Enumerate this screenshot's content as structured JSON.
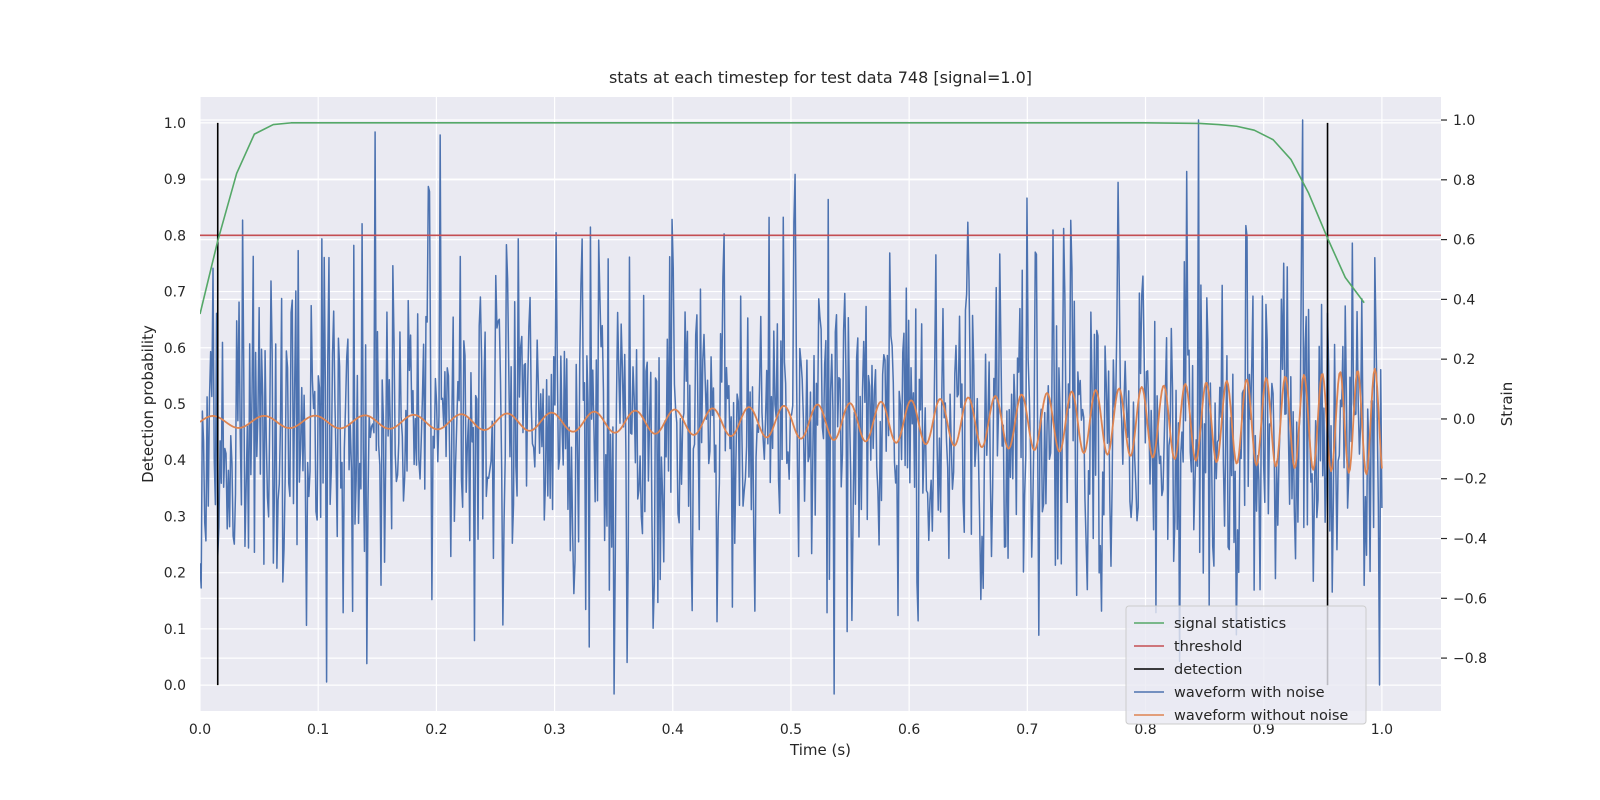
{
  "chart_data": {
    "type": "line",
    "title": "stats at each timestep for test data 748 [signal=1.0]",
    "xlabel": "Time (s)",
    "ylabel": "Detection probability",
    "y2label": "Strain",
    "xlim": [
      0.0,
      1.05
    ],
    "ylim": [
      -0.046,
      1.046
    ],
    "y2lim": [
      -0.977,
      1.077
    ],
    "x_ticks": [
      0.0,
      0.1,
      0.2,
      0.3,
      0.4,
      0.5,
      0.6,
      0.7,
      0.8,
      0.9,
      1.0
    ],
    "x_tick_labels": [
      "0.0",
      "0.1",
      "0.2",
      "0.3",
      "0.4",
      "0.5",
      "0.6",
      "0.7",
      "0.8",
      "0.9",
      "1.0"
    ],
    "y_ticks": [
      0.0,
      0.1,
      0.2,
      0.3,
      0.4,
      0.5,
      0.6,
      0.7,
      0.8,
      0.9,
      1.0
    ],
    "y_tick_labels": [
      "0.0",
      "0.1",
      "0.2",
      "0.3",
      "0.4",
      "0.5",
      "0.6",
      "0.7",
      "0.8",
      "0.9",
      "1.0"
    ],
    "y2_ticks": [
      -0.8,
      -0.6,
      -0.4,
      -0.2,
      0.0,
      0.2,
      0.4,
      0.6,
      0.8,
      1.0
    ],
    "y2_tick_labels": [
      "−0.8",
      "−0.6",
      "−0.4",
      "−0.2",
      "0.0",
      "0.2",
      "0.4",
      "0.6",
      "0.8",
      "1.0"
    ],
    "grid": true,
    "legend_position": "bottom-right",
    "series": [
      {
        "name": "signal statistics",
        "color": "#55a868",
        "axis": "left",
        "x": [
          0.0,
          0.015,
          0.031,
          0.046,
          0.062,
          0.077,
          0.1,
          0.2,
          0.3,
          0.4,
          0.5,
          0.6,
          0.7,
          0.8,
          0.846,
          0.862,
          0.877,
          0.892,
          0.908,
          0.923,
          0.938,
          0.954,
          0.969,
          0.985
        ],
        "y": [
          0.66,
          0.79,
          0.91,
          0.98,
          0.997,
          1.0,
          1.0,
          1.0,
          1.0,
          1.0,
          1.0,
          1.0,
          1.0,
          1.0,
          0.999,
          0.997,
          0.994,
          0.987,
          0.97,
          0.935,
          0.875,
          0.795,
          0.725,
          0.68
        ]
      },
      {
        "name": "threshold",
        "color": "#c44e52",
        "axis": "left",
        "x": [
          0.0,
          1.05
        ],
        "y": [
          0.8,
          0.8
        ]
      },
      {
        "name": "detection",
        "color": "#000000",
        "axis": "left",
        "segments": [
          {
            "x": 0.015,
            "y": [
              0.0,
              1.0
            ]
          },
          {
            "x": 0.954,
            "y": [
              0.0,
              1.0
            ]
          }
        ]
      },
      {
        "name": "waveform with noise",
        "color": "#4c72b0",
        "axis": "right",
        "samples": 1000,
        "x_range": [
          0.0,
          1.0
        ],
        "y_range": [
          -0.92,
          1.0
        ],
        "y_sd": 0.3,
        "peaks": [
          {
            "x": 0.148,
            "y": 0.96
          },
          {
            "x": 0.203,
            "y": 0.95
          },
          {
            "x": 0.845,
            "y": 1.0
          },
          {
            "x": 0.107,
            "y": -0.88
          },
          {
            "x": 0.998,
            "y": -0.89
          }
        ]
      },
      {
        "name": "waveform without noise",
        "color": "#dd8452",
        "axis": "right",
        "samples": 1000,
        "x_range": [
          0.0,
          1.0
        ],
        "description": "chirp: amplitude grows from ~0.02 at t=0 to ~0.18 near t=0.98, frequency grows from ~23 to ~70 cycles per second",
        "amplitude_start": 0.02,
        "amplitude_end": 0.18,
        "freq_start_hz": 23,
        "freq_end_hz": 70
      }
    ]
  }
}
